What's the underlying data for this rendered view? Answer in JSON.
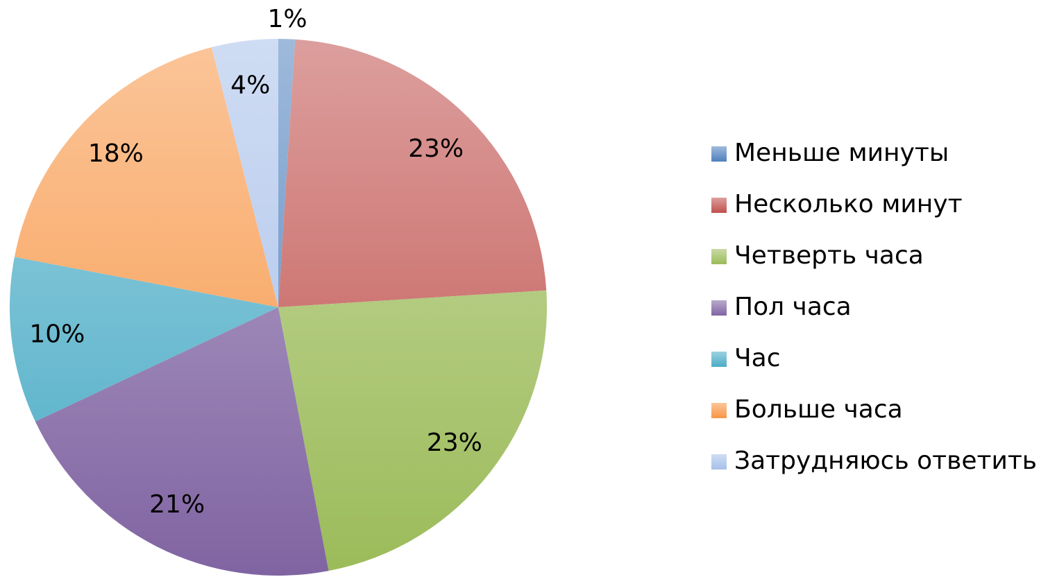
{
  "chart_data": {
    "type": "pie",
    "categories": [
      "Меньше минуты",
      "Несколько минут",
      "Четверть часа",
      "Пол часа",
      "Час",
      "Больше часа",
      "Затрудняюсь ответить"
    ],
    "values": [
      1,
      23,
      23,
      21,
      10,
      18,
      4
    ],
    "value_labels": [
      "1%",
      "23%",
      "23%",
      "21%",
      "10%",
      "18%",
      "4%"
    ],
    "colors": [
      "#4f81bd",
      "#c0504d",
      "#9bbb59",
      "#8064a2",
      "#4bacc6",
      "#f79646",
      "#a7c0ea"
    ],
    "legend": "right"
  }
}
